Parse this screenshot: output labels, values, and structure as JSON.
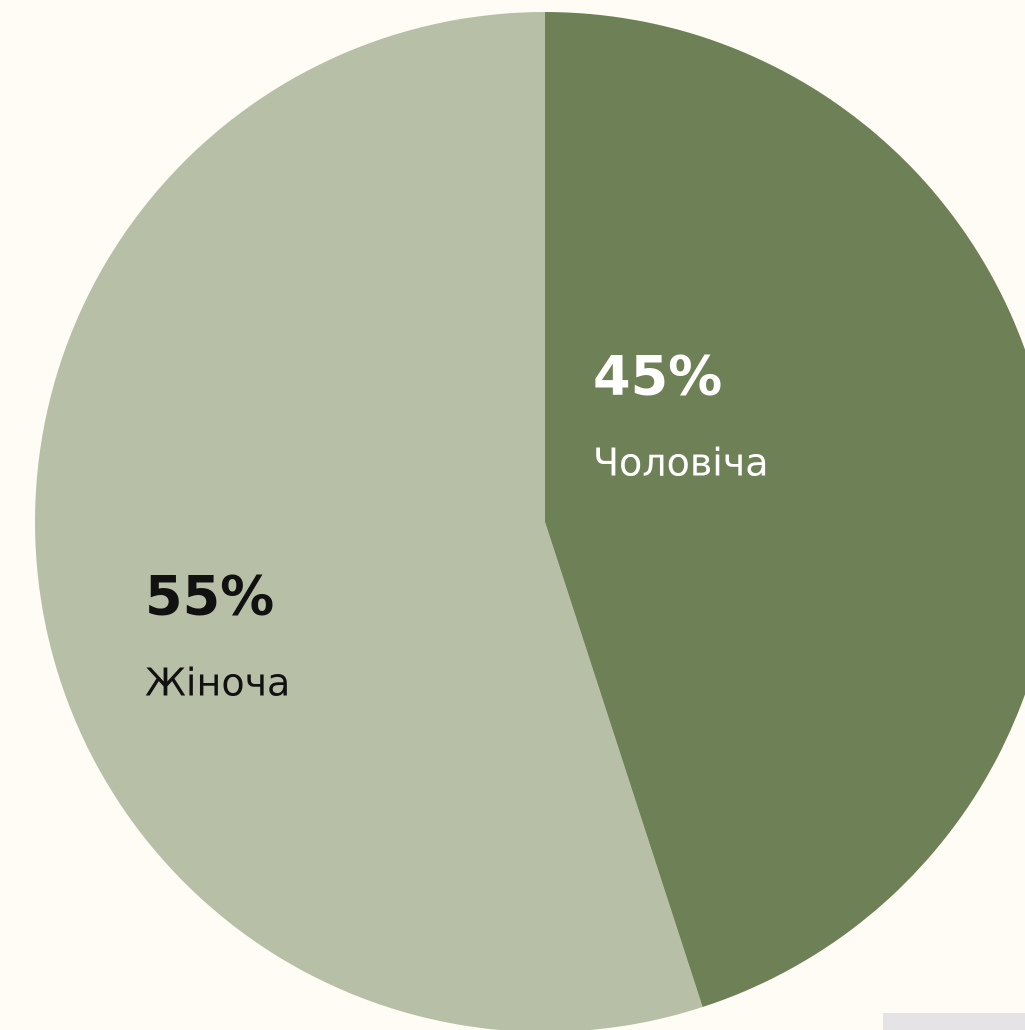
{
  "chart_data": {
    "type": "pie",
    "categories": [
      "Чоловіча",
      "Жіноча"
    ],
    "values": [
      45,
      55
    ],
    "value_labels": [
      "45%",
      "55%"
    ],
    "colors": [
      "#6e8156",
      "#b7c0a7"
    ],
    "label_colors": [
      "#ffffff",
      "#111111"
    ]
  }
}
